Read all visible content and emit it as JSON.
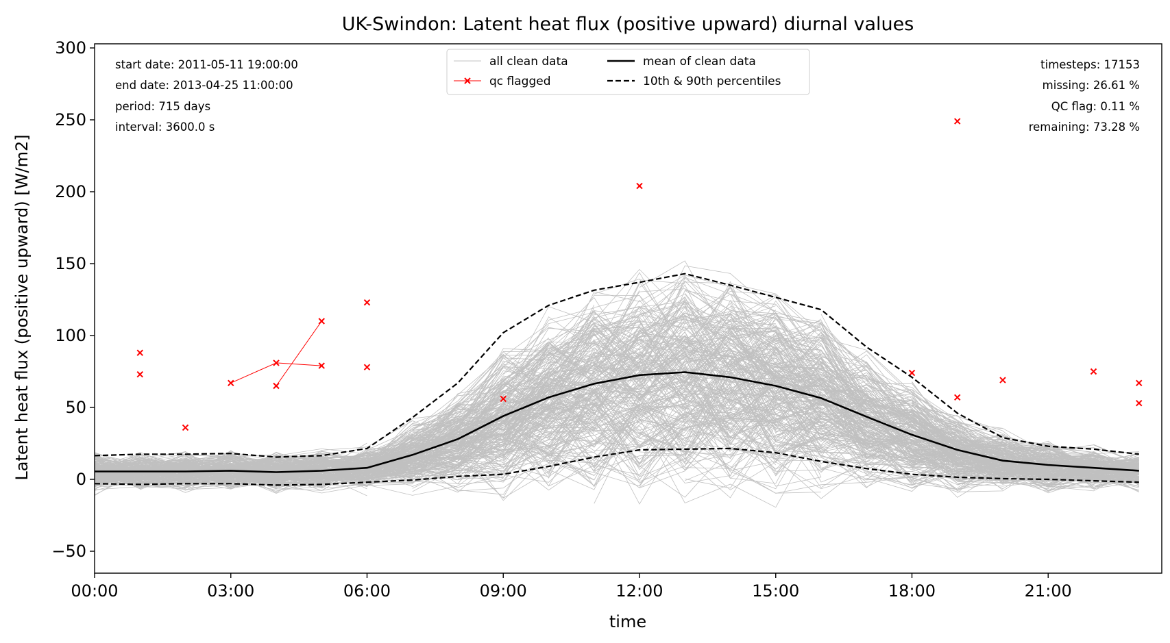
{
  "chart_data": {
    "type": "line",
    "title": "UK-Swindon: Latent heat flux (positive upward) diurnal values",
    "xlabel": "time",
    "ylabel": "Latent heat flux (positive upward) [W/m2]",
    "xlim": [
      0,
      23.5
    ],
    "ylim": [
      -65,
      302
    ],
    "x_ticks": [
      {
        "hour": 0,
        "label": "00:00"
      },
      {
        "hour": 3,
        "label": "03:00"
      },
      {
        "hour": 6,
        "label": "06:00"
      },
      {
        "hour": 9,
        "label": "09:00"
      },
      {
        "hour": 12,
        "label": "12:00"
      },
      {
        "hour": 15,
        "label": "15:00"
      },
      {
        "hour": 18,
        "label": "18:00"
      },
      {
        "hour": 21,
        "label": "21:00"
      }
    ],
    "y_ticks": [
      {
        "value": -50,
        "label": "−50"
      },
      {
        "value": 0,
        "label": "0"
      },
      {
        "value": 50,
        "label": "50"
      },
      {
        "value": 100,
        "label": "100"
      },
      {
        "value": 150,
        "label": "150"
      },
      {
        "value": 200,
        "label": "200"
      },
      {
        "value": 250,
        "label": "250"
      },
      {
        "value": 300,
        "label": "300"
      }
    ],
    "hours": [
      0,
      1,
      2,
      3,
      4,
      5,
      6,
      7,
      8,
      9,
      10,
      11,
      12,
      13,
      14,
      15,
      16,
      17,
      18,
      19,
      20,
      21,
      22,
      23
    ],
    "series": [
      {
        "name": "mean of clean data",
        "color": "#000000",
        "style": "solid",
        "values": [
          5.5,
          5.5,
          5.5,
          6,
          5,
          6,
          8,
          17,
          28,
          44,
          57,
          66.5,
          72.5,
          74.5,
          71,
          65,
          56.5,
          43.5,
          31,
          20.5,
          13,
          10,
          8,
          6
        ]
      },
      {
        "name": "10th & 90th percentiles",
        "color": "#000000",
        "style": "dashed",
        "values": [
          16.5,
          17.5,
          17.5,
          18,
          15.5,
          16.5,
          21.5,
          43,
          67,
          102,
          121,
          131.5,
          137,
          143,
          135,
          126.5,
          118,
          92,
          71,
          46,
          29,
          23,
          21,
          17.5
        ]
      },
      {
        "name": "10th percentile",
        "color": "#000000",
        "style": "dashed",
        "values": [
          -3,
          -3.5,
          -3,
          -3,
          -4,
          -3.5,
          -2,
          -0.5,
          2,
          3.5,
          9,
          15.5,
          20.5,
          21,
          21.5,
          18.5,
          12.5,
          7.5,
          3.5,
          1.5,
          0.5,
          0,
          -1,
          -2
        ]
      }
    ],
    "qc_flagged": [
      {
        "x": 1,
        "y": 88
      },
      {
        "x": 1,
        "y": 73
      },
      {
        "x": 2,
        "y": 36
      },
      {
        "x": 3,
        "y": 67
      },
      {
        "x": 4,
        "y": 81
      },
      {
        "x": 4,
        "y": 65
      },
      {
        "x": 5,
        "y": 79
      },
      {
        "x": 5,
        "y": 110
      },
      {
        "x": 6,
        "y": 123
      },
      {
        "x": 6,
        "y": 78
      },
      {
        "x": 9,
        "y": 56
      },
      {
        "x": 12,
        "y": 204
      },
      {
        "x": 18,
        "y": 74
      },
      {
        "x": 19,
        "y": 249
      },
      {
        "x": 19,
        "y": 57
      },
      {
        "x": 20,
        "y": 69
      },
      {
        "x": 22,
        "y": 75
      },
      {
        "x": 23,
        "y": 67
      },
      {
        "x": 23,
        "y": 53
      }
    ],
    "qc_connections": [
      {
        "from": 3,
        "to": 4
      },
      {
        "from": 4,
        "to": 6
      },
      {
        "from": 5,
        "to": 7
      }
    ],
    "legend": {
      "position": "top-center",
      "entries": [
        {
          "label": "all clean data",
          "kind": "thin-grey-line"
        },
        {
          "label": "qc flagged",
          "kind": "red-x-line"
        },
        {
          "label": "mean of clean data",
          "kind": "solid-black"
        },
        {
          "label": "10th & 90th percentiles",
          "kind": "dashed-black"
        }
      ]
    },
    "colors": {
      "clean_data": "#c0c0c0",
      "qc": "#ff0000",
      "mean": "#000000"
    },
    "grid": false
  },
  "info_left": [
    "start date: 2011-05-11 19:00:00",
    "end date: 2013-04-25 11:00:00",
    "period: 715 days",
    "interval: 3600.0 s"
  ],
  "info_right": [
    "timesteps: 17153",
    "missing: 26.61 %",
    "QC flag: 0.11 %",
    "remaining: 73.28 %"
  ]
}
